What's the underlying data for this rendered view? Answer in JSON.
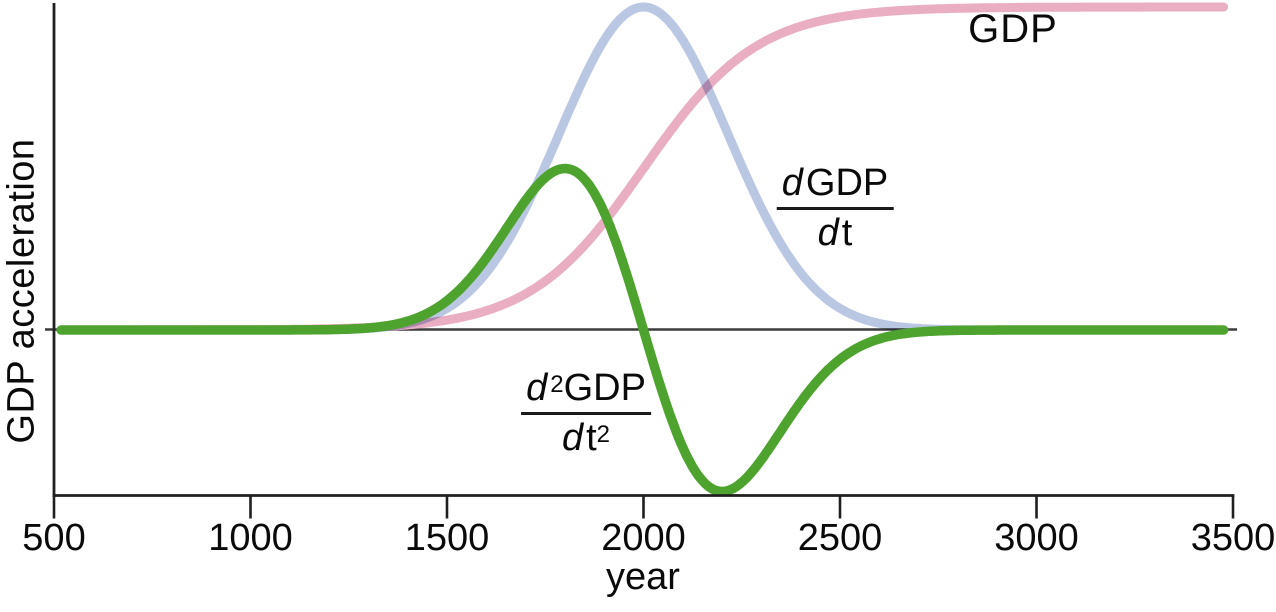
{
  "chart_data": {
    "type": "line",
    "title": "",
    "xlabel": "year",
    "ylabel": "GDP acceleration",
    "x_range": [
      500,
      3500
    ],
    "x_ticks": [
      500,
      1000,
      1500,
      2000,
      2500,
      3000,
      3500
    ],
    "y_axis_ticks_labeled": false,
    "zero_line": true,
    "grid": false,
    "legend_position": "inline-annotations",
    "curve_t_range": [
      518,
      3478
    ],
    "series": [
      {
        "id": "gdp",
        "name": "GDP",
        "shape": "logistic",
        "center": 2000,
        "steepness": 145,
        "amplitude": 1.0,
        "color": "#e9aec2",
        "stroke_width": 9,
        "blend": "normal",
        "description": "sigmoid: ~0 until year ~1300, value 0.5 at year 2000, saturates at 1.0 by year ~2900"
      },
      {
        "id": "dgdp",
        "name": "dGDP/dt",
        "shape": "gaussian",
        "center": 2000,
        "sigma": 215,
        "amplitude": 1.0,
        "color": "#bac7e3",
        "stroke_width": 9,
        "blend": "multiply",
        "description": "bell curve: peak 1.0 at year 2000, near zero outside years 1300-2750"
      },
      {
        "id": "d2gdp",
        "name": "d2GDP/dt2",
        "shape": "gaussian_derivative",
        "center": 2000,
        "sigma": 200,
        "amplitude": 0.5,
        "color": "#4da32d",
        "stroke_width": 9.5,
        "blend": "normal",
        "description": "derivative-of-gaussian: peak +0.5 at year ~1800, zero crossing at 2000, trough -0.5 at year ~2200"
      }
    ],
    "axis_color": "#1f1f1f",
    "zero_line_color": "#3c3c3c"
  },
  "labels": {
    "gdp_label": "GDP",
    "ylabel": "GDP acceleration",
    "xlabel": "year",
    "first_derivative": {
      "num_d": "d",
      "num_rest": "GDP",
      "den_d": "d",
      "den_rest": "t"
    },
    "second_derivative": {
      "num_d": "d",
      "num_sup": "2",
      "num_rest": "GDP",
      "den_d": "d",
      "den_rest": "t",
      "den_sup": "2"
    }
  },
  "x_tick_labels": [
    "500",
    "1000",
    "1500",
    "2000",
    "2500",
    "3000",
    "3500"
  ]
}
